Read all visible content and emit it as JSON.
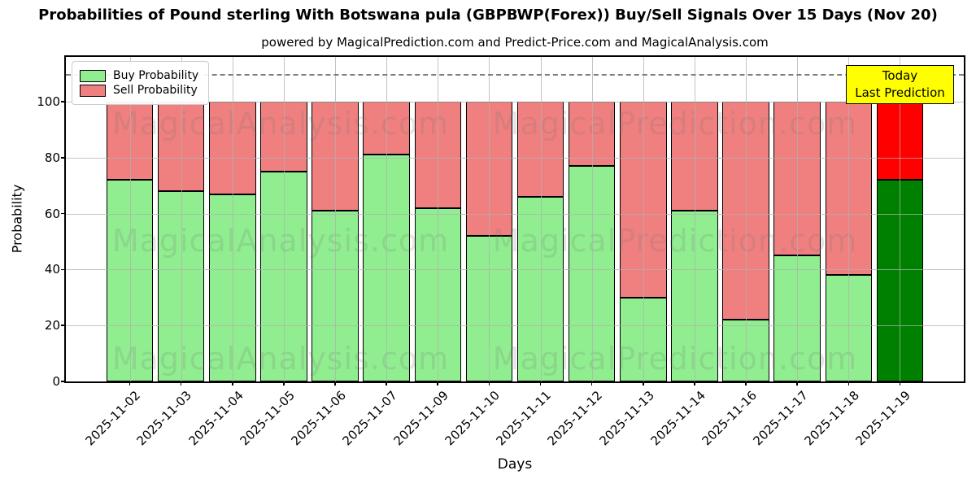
{
  "title": "Probabilities of Pound sterling With Botswana pula (GBPBWP(Forex)) Buy/Sell Signals Over 15 Days (Nov 20)",
  "subtitle": "powered by MagicalPrediction.com and Predict-Price.com and MagicalAnalysis.com",
  "legend": {
    "buy_label": "Buy Probability",
    "sell_label": "Sell Probability"
  },
  "annotation": {
    "line1": "Today",
    "line2": "Last Prediction"
  },
  "axes": {
    "xlabel": "Days",
    "ylabel": "Probability",
    "yticks": [
      0,
      20,
      40,
      60,
      80,
      100
    ]
  },
  "watermarks": [
    "MagicalAnalysis.com",
    "MagicalPrediction.com"
  ],
  "colors": {
    "buy": "#90ee90",
    "sell": "#f08080",
    "today_buy": "#008000",
    "today_sell": "#ff0000",
    "annotation_bg": "#ffff00",
    "dashed_line": "#7f7f7f",
    "grid": "#b0b0b0"
  },
  "chart_data": {
    "type": "bar",
    "stacked": true,
    "title": "Probabilities of Pound sterling With Botswana pula (GBPBWP(Forex)) Buy/Sell Signals Over 15 Days (Nov 20)",
    "xlabel": "Days",
    "ylabel": "Probability",
    "ylim": [
      0,
      116
    ],
    "dashed_line_y": 110,
    "grid": true,
    "legend_position": "upper-left",
    "categories": [
      "2025-11-02",
      "2025-11-03",
      "2025-11-04",
      "2025-11-05",
      "2025-11-06",
      "2025-11-07",
      "2025-11-09",
      "2025-11-10",
      "2025-11-11",
      "2025-11-12",
      "2025-11-13",
      "2025-11-14",
      "2025-11-16",
      "2025-11-17",
      "2025-11-18",
      "2025-11-19"
    ],
    "series": [
      {
        "name": "Buy Probability",
        "values": [
          72,
          68,
          67,
          75,
          61,
          81,
          62,
          52,
          66,
          77,
          30,
          61,
          22,
          45,
          38,
          72
        ]
      },
      {
        "name": "Sell Probability",
        "values": [
          28,
          32,
          33,
          25,
          39,
          19,
          38,
          48,
          34,
          23,
          70,
          39,
          78,
          55,
          62,
          28
        ]
      }
    ],
    "today_index": 15
  }
}
